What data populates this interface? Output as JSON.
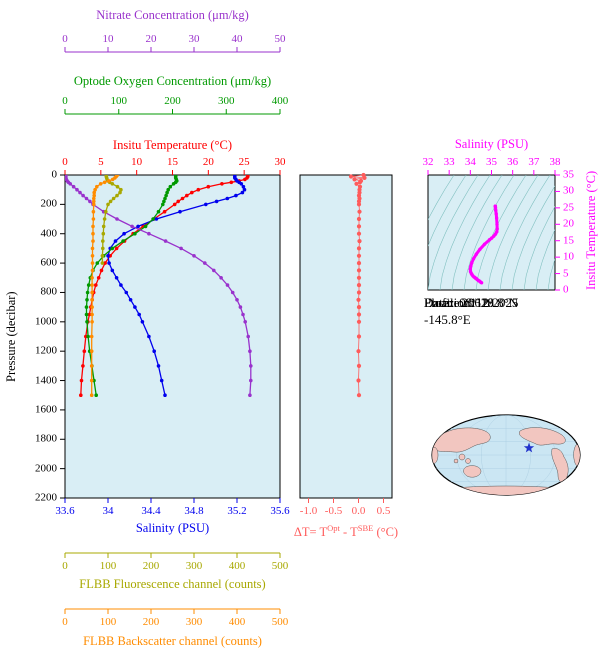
{
  "info": {
    "float_label": "Float:",
    "float_value": "20618",
    "profile_label": "Profile:",
    "profile_value": "112",
    "location_label": "Location:",
    "location_value": "29.8°N  -145.8°E",
    "date_label": "Date:",
    "date_value": "08/12/2025"
  },
  "map": {
    "ocean_color": "#CBE6F3",
    "land_color": "#F2C6C0",
    "star_color": "#2233CC",
    "graticule_color": "#A8CCE0"
  },
  "chart_data": [
    {
      "id": "profiles",
      "type": "line",
      "ylabel": "Pressure (decibar)",
      "ylim": [
        0,
        2200
      ],
      "ytick_values": [
        0,
        200,
        400,
        600,
        800,
        1000,
        1200,
        1400,
        1600,
        1800,
        2000,
        2200
      ],
      "ytick_labels": [
        "0",
        "200",
        "400",
        "600",
        "800",
        "1000",
        "1200",
        "1400",
        "1600",
        "1800",
        "2000",
        "2200"
      ],
      "plot_bg": "#D9EEF5",
      "series": [
        {
          "name": "Insitu Temperature (°C)",
          "color": "#FF0000",
          "xlim": [
            0,
            30
          ],
          "xtick_values": [
            0,
            5,
            10,
            15,
            20,
            25,
            30
          ],
          "xtick_labels": [
            "0",
            "5",
            "10",
            "15",
            "20",
            "25",
            "30"
          ],
          "pressure": [
            0,
            10,
            20,
            30,
            40,
            50,
            60,
            80,
            100,
            120,
            140,
            160,
            180,
            200,
            250,
            300,
            350,
            400,
            450,
            500,
            550,
            600,
            650,
            700,
            750,
            800,
            850,
            900,
            950,
            1000,
            1100,
            1200,
            1300,
            1400,
            1500
          ],
          "values": [
            25.5,
            25.5,
            25.4,
            25.1,
            24.3,
            23.2,
            21.9,
            20.0,
            18.6,
            17.7,
            17.0,
            16.4,
            15.8,
            15.3,
            13.9,
            12.4,
            10.9,
            9.5,
            8.3,
            7.2,
            6.3,
            5.6,
            5.1,
            4.7,
            4.3,
            4.0,
            3.8,
            3.6,
            3.4,
            3.2,
            2.9,
            2.7,
            2.5,
            2.3,
            2.2
          ]
        },
        {
          "name": "Salinity (PSU)",
          "color": "#0000EE",
          "xlim": [
            33.6,
            35.6
          ],
          "xtick_values": [
            33.6,
            34,
            34.4,
            34.8,
            35.2,
            35.6
          ],
          "xtick_labels": [
            "33.6",
            "34",
            "34.4",
            "34.8",
            "35.2",
            "35.6"
          ],
          "pressure": [
            0,
            10,
            20,
            30,
            40,
            50,
            60,
            80,
            100,
            120,
            140,
            160,
            180,
            200,
            250,
            300,
            350,
            400,
            450,
            500,
            550,
            600,
            650,
            700,
            750,
            800,
            850,
            900,
            950,
            1000,
            1100,
            1200,
            1300,
            1400,
            1500
          ],
          "values": [
            35.18,
            35.18,
            35.18,
            35.19,
            35.2,
            35.22,
            35.24,
            35.26,
            35.27,
            35.25,
            35.19,
            35.11,
            35.01,
            34.91,
            34.67,
            34.45,
            34.28,
            34.15,
            34.07,
            34.02,
            34.0,
            34.01,
            34.04,
            34.08,
            34.12,
            34.17,
            34.21,
            34.25,
            34.29,
            34.32,
            34.38,
            34.43,
            34.47,
            34.5,
            34.53
          ]
        },
        {
          "name": "Optode Oxygen Concentration (μm/kg)",
          "color": "#009900",
          "xlim": [
            0,
            400
          ],
          "xtick_values": [
            0,
            100,
            200,
            300,
            400
          ],
          "xtick_labels": [
            "0",
            "100",
            "200",
            "300",
            "400"
          ],
          "pressure": [
            0,
            10,
            20,
            30,
            40,
            50,
            60,
            80,
            100,
            120,
            140,
            160,
            180,
            200,
            250,
            300,
            350,
            400,
            450,
            500,
            550,
            600,
            650,
            700,
            750,
            800,
            850,
            900,
            950,
            1000,
            1100,
            1200,
            1300,
            1400,
            1500
          ],
          "values": [
            206,
            206,
            206,
            207,
            208,
            206,
            202,
            196,
            192,
            190,
            188,
            186,
            184,
            182,
            174,
            164,
            150,
            130,
            108,
            88,
            72,
            60,
            52,
            47,
            44,
            42,
            41,
            40,
            40,
            41,
            43,
            46,
            50,
            54,
            58
          ]
        },
        {
          "name": "Nitrate Concentration (μm/kg)",
          "color": "#9932CC",
          "xlim": [
            0,
            50
          ],
          "xtick_values": [
            0,
            10,
            20,
            30,
            40,
            50
          ],
          "xtick_labels": [
            "0",
            "10",
            "20",
            "30",
            "40",
            "50"
          ],
          "pressure": [
            0,
            10,
            20,
            30,
            40,
            50,
            60,
            80,
            100,
            120,
            140,
            160,
            180,
            200,
            250,
            300,
            350,
            400,
            450,
            500,
            550,
            600,
            650,
            700,
            750,
            800,
            850,
            900,
            950,
            1000,
            1100,
            1200,
            1300,
            1400,
            1500
          ],
          "values": [
            0.2,
            0.2,
            0.2,
            0.3,
            0.5,
            0.8,
            1.2,
            2.0,
            2.8,
            3.5,
            4.2,
            5.0,
            5.8,
            6.5,
            9.0,
            12.1,
            15.6,
            19.5,
            23.4,
            27.0,
            30.0,
            32.5,
            34.6,
            36.3,
            37.8,
            39.0,
            40.0,
            40.8,
            41.4,
            41.9,
            42.6,
            43.0,
            43.2,
            43.2,
            43.0
          ]
        },
        {
          "name": "FLBB Fluorescence channel (counts)",
          "color": "#A8A800",
          "xlim": [
            0,
            500
          ],
          "xtick_values": [
            0,
            100,
            200,
            300,
            400,
            500
          ],
          "xtick_labels": [
            "0",
            "100",
            "200",
            "300",
            "400",
            "500"
          ],
          "pressure": [
            0,
            10,
            20,
            30,
            40,
            50,
            60,
            80,
            100,
            120,
            140,
            160,
            180,
            200,
            250,
            300,
            350,
            400,
            450,
            500,
            550,
            600
          ],
          "values": [
            96,
            96,
            97,
            98,
            100,
            104,
            110,
            122,
            130,
            128,
            121,
            113,
            106,
            100,
            95,
            92,
            90,
            89,
            88,
            88,
            87,
            87
          ]
        },
        {
          "name": "FLBB Backscatter channel (counts)",
          "color": "#FF8C00",
          "xlim": [
            0,
            500
          ],
          "xtick_values": [
            0,
            100,
            200,
            300,
            400,
            500
          ],
          "xtick_labels": [
            "0",
            "100",
            "200",
            "300",
            "400",
            "500"
          ],
          "pressure": [
            0,
            10,
            20,
            30,
            40,
            50,
            60,
            80,
            100,
            120,
            140,
            160,
            180,
            200,
            250,
            300,
            350,
            400,
            450,
            500,
            550,
            600,
            650,
            700,
            750,
            800,
            850,
            900,
            950,
            1000,
            1100,
            1200,
            1300,
            1400,
            1500
          ],
          "values": [
            122,
            119,
            116,
            111,
            102,
            92,
            83,
            74,
            70,
            68,
            68,
            67,
            67,
            67,
            66,
            66,
            65,
            65,
            65,
            64,
            64,
            64,
            64,
            63,
            63,
            63,
            63,
            63,
            63,
            63,
            62,
            62,
            62,
            62,
            62
          ]
        }
      ]
    },
    {
      "id": "delta_t",
      "type": "scatter",
      "xlabel_parts": {
        "pre": "ΔT= T",
        "sup1": "Opt",
        "mid": " - T",
        "sup2": "SBE",
        "post": " (°C)"
      },
      "color": "#FF5B5B",
      "xlim": [
        -1.17,
        0.67
      ],
      "xtick_values": [
        -1.0,
        -0.5,
        0.0,
        0.5
      ],
      "xtick_labels": [
        "-1.0",
        "-0.5",
        "0.0",
        "0.5"
      ],
      "pressure": [
        0,
        10,
        20,
        30,
        40,
        50,
        60,
        80,
        100,
        120,
        140,
        160,
        180,
        200,
        250,
        300,
        350,
        400,
        450,
        500,
        550,
        600,
        650,
        700,
        750,
        800,
        850,
        900,
        950,
        1000,
        1100,
        1200,
        1300,
        1400,
        1500
      ],
      "values": [
        0.1,
        -0.15,
        0.12,
        -0.08,
        0.05,
        0.03,
        -0.04,
        0.03,
        0.02,
        0.02,
        0.01,
        0.02,
        0.01,
        0.01,
        0.02,
        0.01,
        0.01,
        0.01,
        0.02,
        0.01,
        0.01,
        0.01,
        0.01,
        0.01,
        0.01,
        0.01,
        0.0,
        0.01,
        0.01,
        0.01,
        0.01,
        0.0,
        0.01,
        0.0,
        0.01
      ]
    },
    {
      "id": "ts",
      "type": "line",
      "xlabel": "Salinity (PSU)",
      "ylabel": "Insitu Temperature (°C)",
      "color": "#FF00FF",
      "contour_color": "#80C0C0",
      "xlim": [
        32,
        38
      ],
      "xtick_values": [
        32,
        33,
        34,
        35,
        36,
        37,
        38
      ],
      "xtick_labels": [
        "32",
        "33",
        "34",
        "35",
        "36",
        "37",
        "38"
      ],
      "ylim": [
        0,
        35
      ],
      "ytick_values": [
        0,
        5,
        10,
        15,
        20,
        25,
        30,
        35
      ],
      "ytick_labels": [
        "0",
        "5",
        "10",
        "15",
        "20",
        "25",
        "30",
        "35"
      ],
      "salinity": [
        35.18,
        35.18,
        35.18,
        35.19,
        35.2,
        35.22,
        35.24,
        35.26,
        35.27,
        35.25,
        35.19,
        35.11,
        35.01,
        34.91,
        34.67,
        34.45,
        34.28,
        34.15,
        34.07,
        34.02,
        34.0,
        34.01,
        34.04,
        34.08,
        34.12,
        34.17,
        34.21,
        34.25,
        34.29,
        34.32,
        34.38,
        34.43,
        34.47,
        34.5,
        34.53
      ],
      "temperature": [
        25.5,
        25.5,
        25.4,
        25.1,
        24.3,
        23.2,
        21.9,
        20.0,
        18.6,
        17.7,
        17.0,
        16.4,
        15.8,
        15.3,
        13.9,
        12.4,
        10.9,
        9.5,
        8.3,
        7.2,
        6.3,
        5.6,
        5.1,
        4.7,
        4.3,
        4.0,
        3.8,
        3.6,
        3.4,
        3.2,
        2.9,
        2.7,
        2.5,
        2.3,
        2.2
      ]
    }
  ]
}
